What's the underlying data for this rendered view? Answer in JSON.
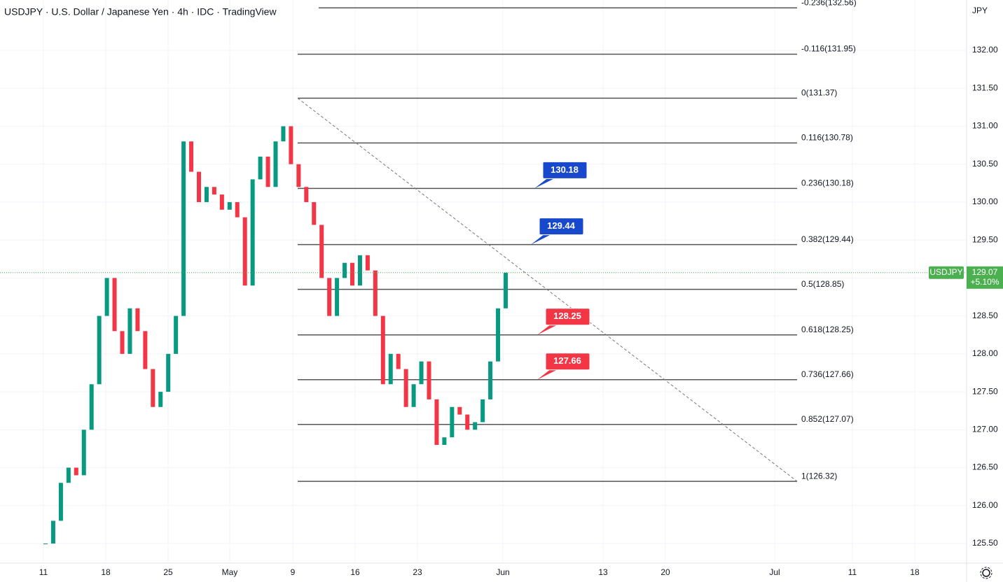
{
  "chart_data": {
    "type": "candlestick",
    "title": "USDJPY · U.S. Dollar / Japanese Yen · 4h · IDC · TradingView",
    "currency": "JPY",
    "x_labels": [
      "11",
      "18",
      "25",
      "May",
      "9",
      "16",
      "23",
      "Jun",
      "13",
      "20",
      "Jul",
      "11",
      "18"
    ],
    "series": [
      {
        "name": "USDJPY",
        "up_color": "#089981",
        "down_color": "#f23645",
        "values": [
          125.5,
          125.8,
          126.3,
          126.5,
          126.4,
          127.0,
          127.6,
          128.5,
          129.0,
          128.3,
          128.0,
          128.6,
          128.3,
          127.8,
          127.3,
          127.5,
          128.0,
          128.5,
          130.8,
          130.4,
          130.0,
          130.2,
          130.1,
          129.9,
          130.0,
          129.8,
          128.9,
          130.3,
          130.6,
          130.2,
          130.8,
          131.0,
          130.5,
          130.2,
          130.0,
          129.7,
          129.0,
          128.5,
          129.0,
          129.2,
          128.9,
          129.3,
          129.1,
          128.5,
          127.6,
          128.0,
          127.8,
          127.3,
          127.6,
          127.9,
          127.4,
          126.8,
          126.9,
          127.3,
          127.2,
          127.0,
          127.1,
          127.4,
          127.9,
          128.6,
          129.07
        ]
      }
    ],
    "ylim": [
      125.242,
      132.664
    ],
    "yticks": [
      {
        "value": 132,
        "label": "132.00"
      },
      {
        "value": 131.5,
        "label": "131.50"
      },
      {
        "value": 131,
        "label": "131.00"
      },
      {
        "value": 130.5,
        "label": "130.50"
      },
      {
        "value": 130,
        "label": "130.00"
      },
      {
        "value": 129.5,
        "label": "129.50"
      },
      {
        "value": 129,
        "label": "129.00"
      },
      {
        "value": 128.5,
        "label": "128.50"
      },
      {
        "value": 128,
        "label": "128.00"
      },
      {
        "value": 127.5,
        "label": "127.50"
      },
      {
        "value": 127,
        "label": "127.00"
      },
      {
        "value": 126.5,
        "label": "126.50"
      },
      {
        "value": 126,
        "label": "126.00"
      },
      {
        "value": 125.5,
        "label": "125.50"
      }
    ],
    "fib_levels": [
      {
        "value": 132.56,
        "label": "-0.236(132.56)"
      },
      {
        "value": 131.95,
        "label": "-0.116(131.95)"
      },
      {
        "value": 131.37,
        "label": "0(131.37)"
      },
      {
        "value": 130.78,
        "label": "0.116(130.78)"
      },
      {
        "value": 130.18,
        "label": "0.236(130.18)"
      },
      {
        "value": 129.44,
        "label": "0.382(129.44)"
      },
      {
        "value": 128.85,
        "label": "0.5(128.85)"
      },
      {
        "value": 128.25,
        "label": "0.618(128.25)"
      },
      {
        "value": 127.66,
        "label": "0.736(127.66)"
      },
      {
        "value": 127.07,
        "label": "0.852(127.07)"
      },
      {
        "value": 126.32,
        "label": "1(126.32)"
      }
    ],
    "callouts": [
      {
        "value": 130.18,
        "color": "#1848cc"
      },
      {
        "value": 129.44,
        "color": "#1848cc"
      },
      {
        "value": 128.25,
        "color": "#f23645"
      },
      {
        "value": 127.66,
        "color": "#f23645"
      }
    ],
    "last_price": {
      "symbol": "USDJPY",
      "value": 129.07,
      "change": "+5.10%",
      "color": "#4caf50"
    }
  }
}
